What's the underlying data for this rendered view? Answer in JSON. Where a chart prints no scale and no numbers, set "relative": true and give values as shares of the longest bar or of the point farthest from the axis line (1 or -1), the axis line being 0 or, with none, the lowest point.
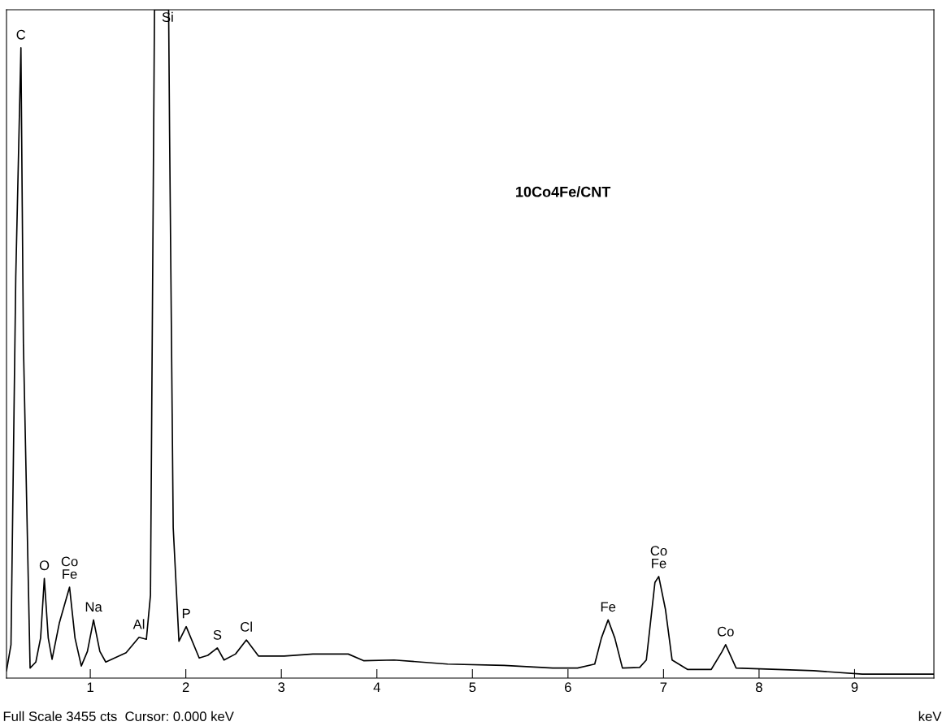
{
  "chart_data": {
    "type": "line",
    "title": "10Co4Fe/CNT",
    "xlabel": "keV",
    "relative": true,
    "xlim": [
      0.123,
      9.83
    ],
    "xticks": [
      1,
      2,
      3,
      4,
      5,
      6,
      7,
      8,
      9
    ],
    "grid": false,
    "legend": false,
    "marker": "none",
    "line_style": "solid",
    "x": [
      0.123,
      0.17,
      0.22,
      0.274,
      0.3,
      0.37,
      0.43,
      0.48,
      0.519,
      0.56,
      0.6,
      0.677,
      0.783,
      0.84,
      0.906,
      0.97,
      1.034,
      1.1,
      1.162,
      1.375,
      1.51,
      1.587,
      1.63,
      1.672,
      1.7,
      1.82,
      1.83,
      1.868,
      1.928,
      2.004,
      2.14,
      2.23,
      2.33,
      2.4,
      2.52,
      2.634,
      2.76,
      3.03,
      3.33,
      3.7,
      3.86,
      4.18,
      4.74,
      5.33,
      5.84,
      6.1,
      6.28,
      6.35,
      6.42,
      6.49,
      6.57,
      6.75,
      6.82,
      6.91,
      6.95,
      7.02,
      7.09,
      7.25,
      7.5,
      7.61,
      7.65,
      7.76,
      8.57,
      9.08,
      9.83
    ],
    "series": [
      {
        "color": "#000000",
        "values": [
          0.011,
          0.05,
          0.6,
          0.943,
          0.5,
          0.015,
          0.024,
          0.06,
          0.149,
          0.06,
          0.028,
          0.083,
          0.136,
          0.06,
          0.018,
          0.04,
          0.087,
          0.04,
          0.024,
          0.038,
          0.061,
          0.058,
          0.124,
          1,
          1,
          1,
          0.816,
          0.225,
          0.055,
          0.077,
          0.03,
          0.034,
          0.045,
          0.027,
          0.036,
          0.057,
          0.033,
          0.033,
          0.036,
          0.036,
          0.026,
          0.027,
          0.021,
          0.019,
          0.015,
          0.015,
          0.021,
          0.06,
          0.087,
          0.06,
          0.015,
          0.016,
          0.027,
          0.143,
          0.152,
          0.103,
          0.027,
          0.013,
          0.013,
          0.039,
          0.05,
          0.015,
          0.011,
          0.006,
          0.006
        ]
      }
    ],
    "annotations": [
      {
        "text": "C",
        "x": 0.274,
        "y": 0.943
      },
      {
        "text": "Si",
        "x": 1.7,
        "y": 1
      },
      {
        "text": "O",
        "x": 0.519,
        "y": 0.149
      },
      {
        "text": "Co\nFe",
        "x": 0.783,
        "y": 0.136
      },
      {
        "text": "Na",
        "x": 1.034,
        "y": 0.087
      },
      {
        "text": "Al",
        "x": 1.51,
        "y": 0.061
      },
      {
        "text": "P",
        "x": 2.004,
        "y": 0.077
      },
      {
        "text": "S",
        "x": 2.33,
        "y": 0.045
      },
      {
        "text": "Cl",
        "x": 2.634,
        "y": 0.057
      },
      {
        "text": "Fe",
        "x": 6.42,
        "y": 0.087
      },
      {
        "text": "Co\nFe",
        "x": 6.95,
        "y": 0.152
      },
      {
        "text": "Co",
        "x": 7.65,
        "y": 0.05
      },
      "Full Scale 3455 cts  Cursor: 0.000 keV"
    ]
  }
}
